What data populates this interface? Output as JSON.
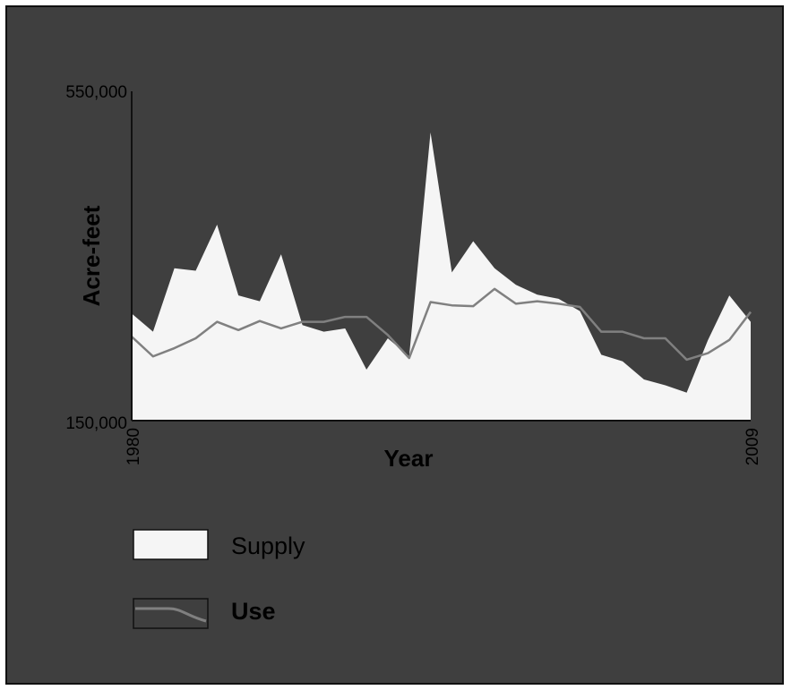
{
  "colors": {
    "background": "#3f3f3f",
    "supply_fill": "#f5f5f5",
    "use_line": "#808080",
    "axis": "#111111",
    "text": "#000000"
  },
  "chart_data": {
    "type": "area",
    "title": "",
    "xlabel": "Year",
    "ylabel": "Acre-feet",
    "xlim": [
      1980,
      2009
    ],
    "ylim": [
      150000,
      550000
    ],
    "x_tick_labels": [
      "1980",
      "2009"
    ],
    "y_tick_labels": [
      "550,000",
      "150,000"
    ],
    "grid": false,
    "legend": "bottom-left",
    "x": [
      1980,
      1981,
      1982,
      1983,
      1984,
      1985,
      1986,
      1987,
      1988,
      1989,
      1990,
      1991,
      1992,
      1993,
      1994,
      1995,
      1996,
      1997,
      1998,
      1999,
      2000,
      2001,
      2002,
      2003,
      2004,
      2005,
      2006,
      2007,
      2008,
      2009
    ],
    "series": [
      {
        "name": "Supply",
        "style": "area",
        "values": [
          280000,
          258000,
          335000,
          332000,
          388000,
          302000,
          295000,
          352000,
          266000,
          258000,
          262000,
          212000,
          250000,
          228000,
          500000,
          330000,
          368000,
          335000,
          315000,
          303000,
          298000,
          283000,
          230000,
          222000,
          200000,
          193000,
          184000,
          248000,
          302000,
          270000
        ]
      },
      {
        "name": "Use",
        "style": "line",
        "values": [
          252000,
          228000,
          238000,
          250000,
          270000,
          260000,
          271000,
          262000,
          270000,
          270000,
          276000,
          276000,
          254000,
          226000,
          294000,
          290000,
          289000,
          310000,
          292000,
          295000,
          292000,
          288000,
          258000,
          258000,
          250000,
          250000,
          224000,
          232000,
          248000,
          282000
        ]
      }
    ]
  }
}
